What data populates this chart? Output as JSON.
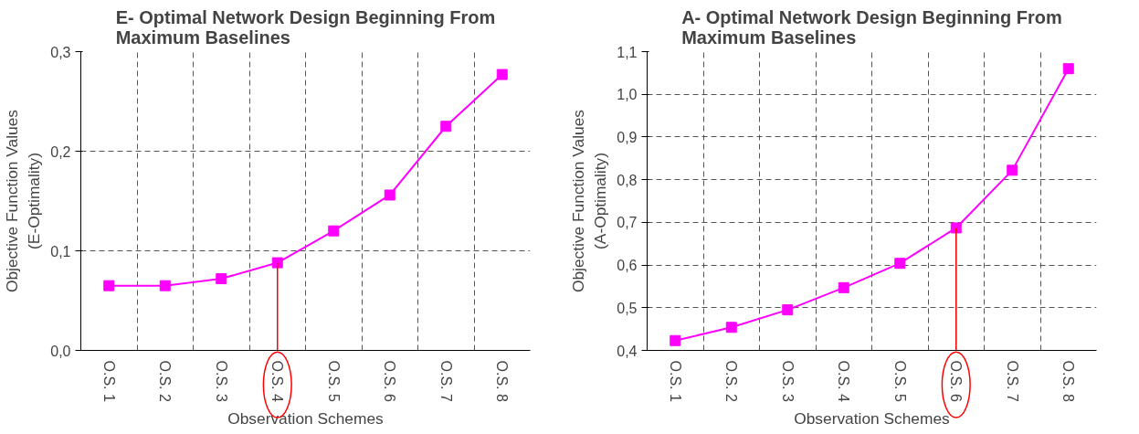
{
  "chart_data": [
    {
      "type": "line",
      "title": "E- Optimal Network Design Beginning From Maximum Baselines",
      "xlabel": "Observation Schemes",
      "ylabel": "Objective Function Values (E-Optimality)",
      "categories": [
        "O.S. 1",
        "O.S. 2",
        "O.S. 3",
        "O.S. 4",
        "O.S. 5",
        "O.S. 6",
        "O.S. 7",
        "O.S. 8"
      ],
      "series": [
        {
          "color": "#ff00ff",
          "values": [
            0.065,
            0.065,
            0.072,
            0.088,
            0.12,
            0.156,
            0.225,
            0.277
          ]
        }
      ],
      "ylim": [
        0,
        0.3
      ],
      "yticks": [
        {
          "value": 0,
          "label": "0,0"
        },
        {
          "value": 0.1,
          "label": "0,1"
        },
        {
          "value": 0.2,
          "label": "0,2"
        },
        {
          "value": 0.3,
          "label": "0,3"
        }
      ],
      "ref_lines": [
        {
          "axis": "x",
          "value": "O.S. 4",
          "color": "#ff0000"
        }
      ],
      "grid": true,
      "marker": "square",
      "line_style": "solid"
    },
    {
      "type": "line",
      "title": "A- Optimal Network Design Beginning From Maximum Baselines",
      "xlabel": "Observation Schemes",
      "ylabel": "Objective Function Values (A-Optimality)",
      "categories": [
        "O.S. 1",
        "O.S. 2",
        "O.S. 3",
        "O.S. 4",
        "O.S. 5",
        "O.S. 6",
        "O.S. 7",
        "O.S. 8"
      ],
      "series": [
        {
          "color": "#ff00ff",
          "values": [
            0.423,
            0.454,
            0.495,
            0.547,
            0.604,
            0.687,
            0.822,
            1.06
          ]
        }
      ],
      "ylim": [
        0.4,
        1.1
      ],
      "yticks": [
        {
          "value": 0.4,
          "label": "0,4"
        },
        {
          "value": 0.5,
          "label": "0,5"
        },
        {
          "value": 0.6,
          "label": "0,6"
        },
        {
          "value": 0.7,
          "label": "0,7"
        },
        {
          "value": 0.8,
          "label": "0,8"
        },
        {
          "value": 0.9,
          "label": "0,9"
        },
        {
          "value": 1.0,
          "label": "1,0"
        },
        {
          "value": 1.1,
          "label": "1,1"
        }
      ],
      "ref_lines": [
        {
          "axis": "x",
          "value": "O.S. 6",
          "color": "#ff0000"
        }
      ],
      "grid": true,
      "marker": "square",
      "line_style": "solid"
    }
  ]
}
